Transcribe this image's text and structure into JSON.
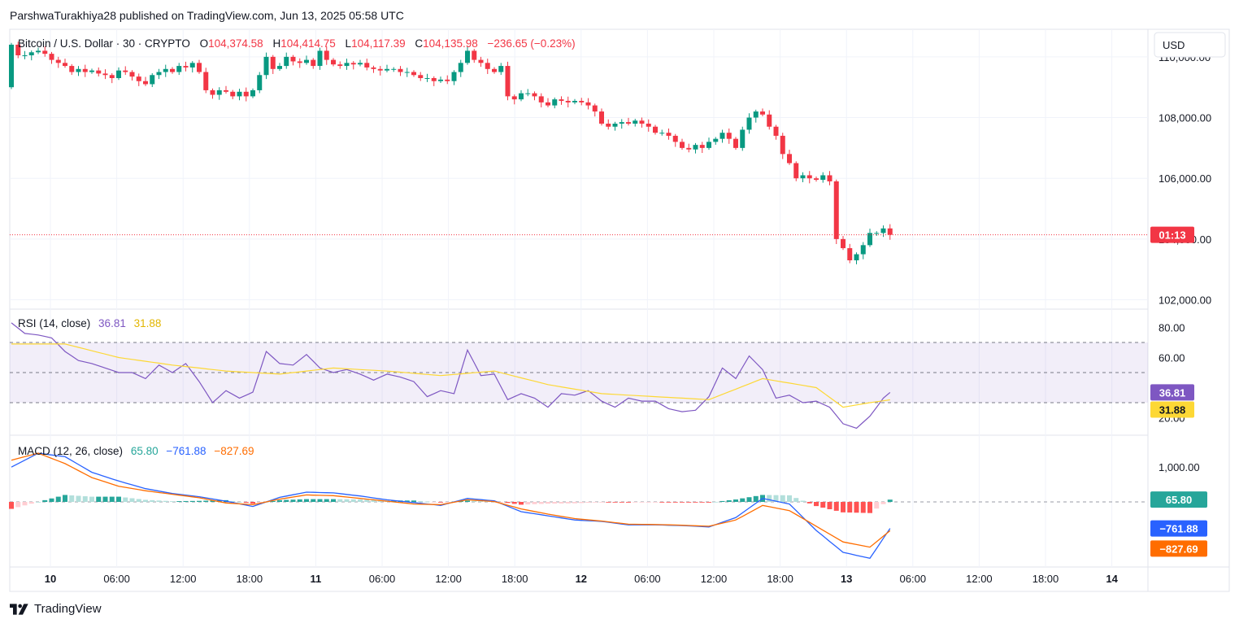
{
  "publish_line": "ParshwaTurakhiya28 published on TradingView.com, Jun 13, 2025 05:58 UTC",
  "symbol": "Bitcoin / U.S. Dollar · 30 · CRYPTO",
  "ohlc": {
    "o_label": "O",
    "o_value": "104,374.58",
    "h_label": "H",
    "h_value": "104,414.75",
    "l_label": "L",
    "l_value": "104,117.39",
    "c_label": "C",
    "c_value": "104,135.98",
    "change": "−236.65 (−0.23%)"
  },
  "currency": "USD",
  "price_axis": [
    "110,000.00",
    "108,000.00",
    "106,000.00",
    "104,000.00",
    "102,000.00"
  ],
  "countdown": "01:13",
  "rsi": {
    "label": "RSI (14, close)",
    "value": "36.81",
    "ma": "31.88",
    "ticks": [
      "80.00",
      "60.00",
      "40.00",
      "20.00"
    ]
  },
  "macd": {
    "label": "MACD (12, 26, close)",
    "hist": "65.80",
    "macd": "−761.88",
    "signal": "−827.69",
    "ticks": [
      "1,000.00",
      "0.00"
    ]
  },
  "time_axis": [
    {
      "t": "10",
      "day": true
    },
    {
      "t": "06:00"
    },
    {
      "t": "12:00"
    },
    {
      "t": "18:00"
    },
    {
      "t": "11",
      "day": true
    },
    {
      "t": "06:00"
    },
    {
      "t": "12:00"
    },
    {
      "t": "18:00"
    },
    {
      "t": "12",
      "day": true
    },
    {
      "t": "06:00"
    },
    {
      "t": "12:00"
    },
    {
      "t": "18:00"
    },
    {
      "t": "13",
      "day": true
    },
    {
      "t": "06:00"
    },
    {
      "t": "12:00"
    },
    {
      "t": "18:00"
    },
    {
      "t": "14",
      "day": true
    }
  ],
  "footer_brand": "TradingView",
  "colors": {
    "up": "#089981",
    "down": "#f23645",
    "rsi": "#7e57c2",
    "rsi_ma": "#fdd835",
    "macd": "#2962ff",
    "signal": "#ff6d00",
    "hist_up": "#26a69a",
    "hist_down": "#ff5252"
  },
  "chart_data": {
    "type": "candlestick",
    "interval": "30m",
    "x_start": "Jun 9 22:00 UTC",
    "close_path": [
      [
        0,
        110400
      ],
      [
        1,
        110050
      ],
      [
        2,
        110050
      ],
      [
        3,
        110150
      ],
      [
        4,
        110200
      ],
      [
        5,
        110100
      ],
      [
        6,
        109900
      ],
      [
        7,
        109800
      ],
      [
        8,
        109700
      ],
      [
        9,
        109500
      ],
      [
        10,
        109600
      ],
      [
        11,
        109500
      ],
      [
        12,
        109550
      ],
      [
        13,
        109450
      ],
      [
        14,
        109400
      ],
      [
        15,
        109300
      ],
      [
        16,
        109550
      ],
      [
        17,
        109500
      ],
      [
        18,
        109350
      ],
      [
        19,
        109200
      ],
      [
        20,
        109100
      ],
      [
        21,
        109400
      ],
      [
        22,
        109500
      ],
      [
        23,
        109600
      ],
      [
        24,
        109500
      ],
      [
        25,
        109700
      ],
      [
        26,
        109650
      ],
      [
        27,
        109800
      ],
      [
        28,
        109500
      ],
      [
        29,
        108900
      ],
      [
        30,
        108750
      ],
      [
        31,
        108900
      ],
      [
        32,
        108850
      ],
      [
        33,
        108700
      ],
      [
        34,
        108850
      ],
      [
        35,
        108700
      ],
      [
        36,
        108900
      ],
      [
        37,
        109400
      ],
      [
        38,
        110000
      ],
      [
        39,
        109600
      ],
      [
        40,
        109700
      ],
      [
        41,
        110000
      ],
      [
        42,
        109850
      ],
      [
        43,
        109800
      ],
      [
        44,
        109900
      ],
      [
        45,
        109700
      ],
      [
        46,
        110200
      ],
      [
        47,
        109900
      ],
      [
        48,
        109750
      ],
      [
        49,
        109700
      ],
      [
        50,
        109800
      ],
      [
        51,
        109750
      ],
      [
        52,
        109800
      ],
      [
        53,
        109650
      ],
      [
        54,
        109600
      ],
      [
        55,
        109550
      ],
      [
        56,
        109600
      ],
      [
        57,
        109600
      ],
      [
        58,
        109500
      ],
      [
        59,
        109500
      ],
      [
        60,
        109400
      ],
      [
        61,
        109300
      ],
      [
        62,
        109300
      ],
      [
        63,
        109200
      ],
      [
        64,
        109250
      ],
      [
        65,
        109200
      ],
      [
        66,
        109500
      ],
      [
        67,
        109800
      ],
      [
        68,
        110200
      ],
      [
        69,
        109900
      ],
      [
        70,
        109800
      ],
      [
        71,
        109600
      ],
      [
        72,
        109500
      ],
      [
        73,
        109700
      ],
      [
        74,
        108700
      ],
      [
        75,
        108600
      ],
      [
        76,
        108800
      ],
      [
        77,
        108800
      ],
      [
        78,
        108700
      ],
      [
        79,
        108500
      ],
      [
        80,
        108400
      ],
      [
        81,
        108600
      ],
      [
        82,
        108550
      ],
      [
        83,
        108500
      ],
      [
        84,
        108550
      ],
      [
        85,
        108500
      ],
      [
        86,
        108400
      ],
      [
        87,
        108200
      ],
      [
        88,
        107800
      ],
      [
        89,
        107700
      ],
      [
        90,
        107800
      ],
      [
        91,
        107850
      ],
      [
        92,
        107800
      ],
      [
        93,
        107900
      ],
      [
        94,
        107800
      ],
      [
        95,
        107700
      ],
      [
        96,
        107500
      ],
      [
        97,
        107500
      ],
      [
        98,
        107400
      ],
      [
        99,
        107200
      ],
      [
        100,
        107000
      ],
      [
        101,
        106950
      ],
      [
        102,
        107100
      ],
      [
        103,
        107000
      ],
      [
        104,
        107200
      ],
      [
        105,
        107300
      ],
      [
        106,
        107500
      ],
      [
        107,
        107300
      ],
      [
        108,
        107000
      ],
      [
        109,
        107600
      ],
      [
        110,
        108000
      ],
      [
        111,
        108200
      ],
      [
        112,
        108100
      ],
      [
        113,
        107700
      ],
      [
        114,
        107400
      ],
      [
        115,
        106800
      ],
      [
        116,
        106500
      ],
      [
        117,
        106000
      ],
      [
        118,
        106100
      ],
      [
        119,
        106000
      ],
      [
        120,
        105950
      ],
      [
        121,
        106100
      ],
      [
        122,
        105900
      ],
      [
        123,
        104000
      ],
      [
        124,
        103700
      ],
      [
        125,
        103300
      ],
      [
        126,
        103500
      ],
      [
        127,
        103800
      ],
      [
        128,
        104200
      ],
      [
        129,
        104200
      ],
      [
        130,
        104350
      ],
      [
        131,
        104140
      ]
    ],
    "rsi": [
      [
        0,
        83
      ],
      [
        2,
        76
      ],
      [
        4,
        75
      ],
      [
        6,
        73
      ],
      [
        8,
        64
      ],
      [
        10,
        58
      ],
      [
        12,
        56
      ],
      [
        14,
        53
      ],
      [
        16,
        50
      ],
      [
        18,
        50
      ],
      [
        20,
        46
      ],
      [
        22,
        55
      ],
      [
        24,
        50
      ],
      [
        26,
        56
      ],
      [
        28,
        44
      ],
      [
        30,
        30
      ],
      [
        32,
        38
      ],
      [
        34,
        33
      ],
      [
        36,
        37
      ],
      [
        38,
        64
      ],
      [
        40,
        56
      ],
      [
        42,
        55
      ],
      [
        44,
        62
      ],
      [
        46,
        53
      ],
      [
        48,
        50
      ],
      [
        50,
        52
      ],
      [
        52,
        49
      ],
      [
        54,
        45
      ],
      [
        56,
        49
      ],
      [
        58,
        47
      ],
      [
        60,
        44
      ],
      [
        62,
        34
      ],
      [
        64,
        38
      ],
      [
        66,
        36
      ],
      [
        68,
        65
      ],
      [
        70,
        48
      ],
      [
        72,
        49
      ],
      [
        74,
        32
      ],
      [
        76,
        36
      ],
      [
        78,
        33
      ],
      [
        80,
        27
      ],
      [
        82,
        36
      ],
      [
        84,
        35
      ],
      [
        86,
        38
      ],
      [
        88,
        31
      ],
      [
        90,
        27
      ],
      [
        92,
        33
      ],
      [
        94,
        31
      ],
      [
        96,
        31
      ],
      [
        98,
        26
      ],
      [
        100,
        24
      ],
      [
        102,
        25
      ],
      [
        104,
        34
      ],
      [
        106,
        53
      ],
      [
        108,
        46
      ],
      [
        110,
        61
      ],
      [
        112,
        52
      ],
      [
        114,
        33
      ],
      [
        116,
        35
      ],
      [
        118,
        30
      ],
      [
        120,
        31
      ],
      [
        122,
        27
      ],
      [
        124,
        16
      ],
      [
        126,
        13
      ],
      [
        128,
        21
      ],
      [
        130,
        33
      ],
      [
        131,
        36.81
      ]
    ],
    "rsi_ma": [
      [
        0,
        69
      ],
      [
        8,
        69
      ],
      [
        16,
        60
      ],
      [
        24,
        55
      ],
      [
        32,
        51
      ],
      [
        40,
        49
      ],
      [
        48,
        53
      ],
      [
        56,
        51
      ],
      [
        64,
        48
      ],
      [
        72,
        51
      ],
      [
        80,
        42
      ],
      [
        88,
        36
      ],
      [
        96,
        34
      ],
      [
        104,
        32
      ],
      [
        112,
        46
      ],
      [
        120,
        40
      ],
      [
        124,
        27
      ],
      [
        128,
        30
      ],
      [
        131,
        31.88
      ]
    ],
    "macd": [
      [
        0,
        1000
      ],
      [
        4,
        1400
      ],
      [
        8,
        1300
      ],
      [
        12,
        850
      ],
      [
        16,
        600
      ],
      [
        20,
        380
      ],
      [
        24,
        240
      ],
      [
        28,
        150
      ],
      [
        32,
        20
      ],
      [
        36,
        -130
      ],
      [
        40,
        130
      ],
      [
        44,
        280
      ],
      [
        48,
        260
      ],
      [
        52,
        170
      ],
      [
        56,
        60
      ],
      [
        60,
        -20
      ],
      [
        64,
        -100
      ],
      [
        68,
        100
      ],
      [
        72,
        30
      ],
      [
        76,
        -280
      ],
      [
        80,
        -400
      ],
      [
        84,
        -520
      ],
      [
        88,
        -560
      ],
      [
        92,
        -660
      ],
      [
        96,
        -660
      ],
      [
        100,
        -680
      ],
      [
        104,
        -720
      ],
      [
        108,
        -450
      ],
      [
        112,
        100
      ],
      [
        116,
        -60
      ],
      [
        120,
        -820
      ],
      [
        124,
        -1450
      ],
      [
        128,
        -1620
      ],
      [
        131,
        -761.88
      ]
    ],
    "signal": [
      [
        0,
        1200
      ],
      [
        4,
        1400
      ],
      [
        8,
        1100
      ],
      [
        12,
        700
      ],
      [
        16,
        450
      ],
      [
        20,
        320
      ],
      [
        24,
        220
      ],
      [
        28,
        120
      ],
      [
        32,
        -30
      ],
      [
        36,
        -80
      ],
      [
        40,
        80
      ],
      [
        44,
        200
      ],
      [
        48,
        180
      ],
      [
        52,
        100
      ],
      [
        56,
        20
      ],
      [
        60,
        -60
      ],
      [
        64,
        -80
      ],
      [
        68,
        60
      ],
      [
        72,
        10
      ],
      [
        76,
        -200
      ],
      [
        80,
        -350
      ],
      [
        84,
        -480
      ],
      [
        88,
        -550
      ],
      [
        92,
        -640
      ],
      [
        96,
        -650
      ],
      [
        100,
        -670
      ],
      [
        104,
        -700
      ],
      [
        108,
        -520
      ],
      [
        112,
        -100
      ],
      [
        116,
        -250
      ],
      [
        120,
        -700
      ],
      [
        124,
        -1150
      ],
      [
        128,
        -1300
      ],
      [
        131,
        -827.69
      ]
    ],
    "ylim": [
      101800,
      110800
    ],
    "rsi_ylim": [
      10,
      90
    ],
    "macd_ylim": [
      -1800,
      1800
    ]
  }
}
